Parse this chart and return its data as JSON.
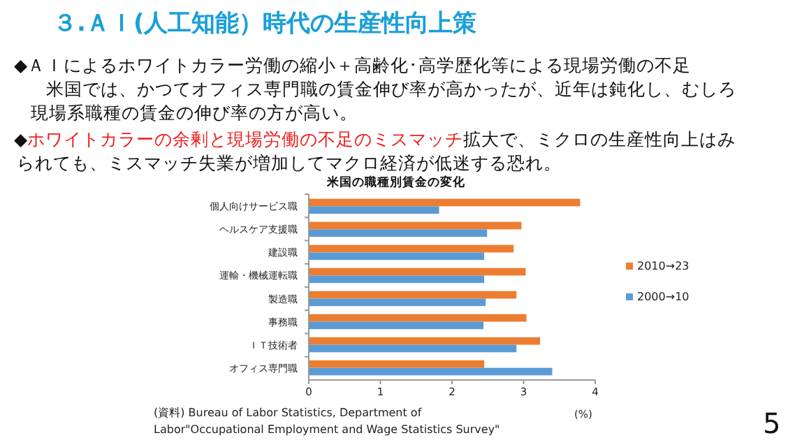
{
  "chart_data": {
    "type": "bar",
    "orientation": "horizontal",
    "title": "３.ＡＩ(人工知能）時代の生産性向上策",
    "subtitle": "米国の職種別賃金の変化",
    "xlabel": "(%)",
    "categories": [
      "個人向けサービス職",
      "ヘルスケア支援職",
      "建設職",
      "運輸・機械運転職",
      "製造職",
      "事務職",
      "ＩＴ技術者",
      "オフィス専門職"
    ],
    "series": [
      {
        "name": "2010→23",
        "color": "#ed7d31",
        "values": [
          3.79,
          2.97,
          2.86,
          3.03,
          2.9,
          3.04,
          3.23,
          2.45
        ]
      },
      {
        "name": "2000→10",
        "color": "#5b9bd5",
        "values": [
          1.82,
          2.49,
          2.45,
          2.45,
          2.47,
          2.44,
          2.9,
          3.4
        ]
      }
    ],
    "xlim": [
      0,
      4
    ],
    "xticks": [
      0,
      1,
      2,
      3,
      4
    ],
    "grid": false,
    "legend": "right",
    "annotations": [
      "◆ＡＩによるホワイトカラー労働の縮小＋高齢化･高学歴化等による現場労働の不足",
      "米国では、かつてオフィス専門職の賃金伸び率が高かったが、近年は鈍化し、むしろ",
      "現場系職種の賃金の伸び率の方が高い。",
      "◆",
      "ホワイトカラーの余剰と現場労働の不足のミスマッチ",
      "拡大で、ミクロの生産性向上はみ",
      "られても、ミスマッチ失業が増加してマクロ経済が低迷する恐れ。",
      "(資料) Bureau of Labor Statistics, Department of Labor\"Occupational Employment and Wage Statistics Survey\"",
      "5"
    ]
  }
}
